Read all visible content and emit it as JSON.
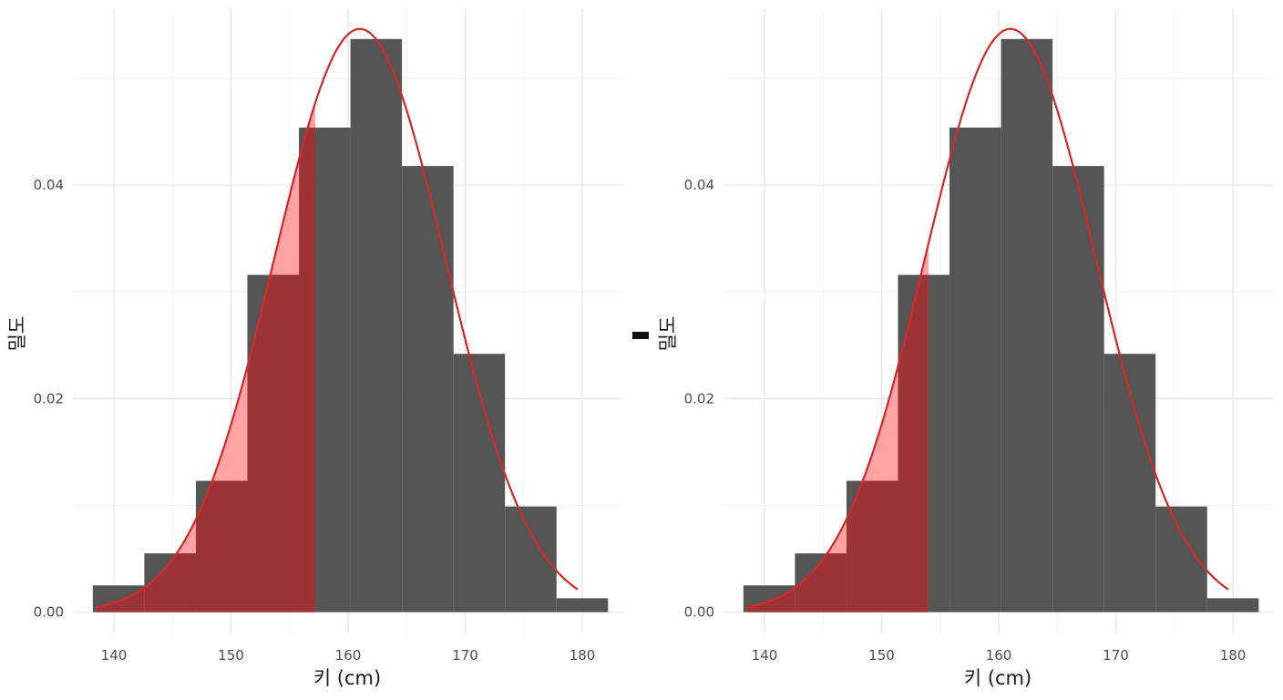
{
  "colors": {
    "bar": "#555555",
    "shade": "#9b3337",
    "shade_light": "#ff9ea0",
    "curve": "#d62728",
    "grid_major": "#e6e6e6",
    "grid_minor": "#f2f2f2"
  },
  "chart_data": [
    {
      "type": "bar",
      "subtype": "histogram",
      "xlabel": "키 (cm)",
      "ylabel": "밀도",
      "xlim": [
        136.5,
        183.5
      ],
      "ylim": [
        -0.002,
        0.0565
      ],
      "xticks": [
        140,
        150,
        160,
        170,
        180
      ],
      "yticks": [
        0.0,
        0.02,
        0.04
      ],
      "ytick_labels": [
        "0.00",
        "0.02",
        "0.04"
      ],
      "bins": [
        {
          "x0": 138.2,
          "x1": 142.6,
          "density": 0.0025
        },
        {
          "x0": 142.6,
          "x1": 147.0,
          "density": 0.0055
        },
        {
          "x0": 147.0,
          "x1": 151.4,
          "density": 0.0123
        },
        {
          "x0": 151.4,
          "x1": 155.8,
          "density": 0.0316
        },
        {
          "x0": 155.8,
          "x1": 160.2,
          "density": 0.0454
        },
        {
          "x0": 160.2,
          "x1": 164.6,
          "density": 0.0537
        },
        {
          "x0": 164.6,
          "x1": 169.0,
          "density": 0.0418
        },
        {
          "x0": 169.0,
          "x1": 173.4,
          "density": 0.0242
        },
        {
          "x0": 173.4,
          "x1": 177.8,
          "density": 0.0099
        },
        {
          "x0": 177.8,
          "x1": 182.2,
          "density": 0.0013
        }
      ],
      "curve": {
        "mean": 161.0,
        "sd": 7.3,
        "from": 138.5,
        "to": 179.6
      },
      "shaded_upto": 157.2
    },
    {
      "type": "bar",
      "subtype": "histogram",
      "xlabel": "키 (cm)",
      "ylabel": "밀도",
      "xlim": [
        136.5,
        183.5
      ],
      "ylim": [
        -0.002,
        0.0565
      ],
      "xticks": [
        140,
        150,
        160,
        170,
        180
      ],
      "yticks": [
        0.0,
        0.02,
        0.04
      ],
      "ytick_labels": [
        "0.00",
        "0.02",
        "0.04"
      ],
      "bins": [
        {
          "x0": 138.2,
          "x1": 142.6,
          "density": 0.0025
        },
        {
          "x0": 142.6,
          "x1": 147.0,
          "density": 0.0055
        },
        {
          "x0": 147.0,
          "x1": 151.4,
          "density": 0.0123
        },
        {
          "x0": 151.4,
          "x1": 155.8,
          "density": 0.0316
        },
        {
          "x0": 155.8,
          "x1": 160.2,
          "density": 0.0454
        },
        {
          "x0": 160.2,
          "x1": 164.6,
          "density": 0.0537
        },
        {
          "x0": 164.6,
          "x1": 169.0,
          "density": 0.0418
        },
        {
          "x0": 169.0,
          "x1": 173.4,
          "density": 0.0242
        },
        {
          "x0": 173.4,
          "x1": 177.8,
          "density": 0.0099
        },
        {
          "x0": 177.8,
          "x1": 182.2,
          "density": 0.0013
        }
      ],
      "curve": {
        "mean": 161.0,
        "sd": 7.3,
        "from": 138.5,
        "to": 179.6
      },
      "shaded_upto": 154.0
    }
  ]
}
